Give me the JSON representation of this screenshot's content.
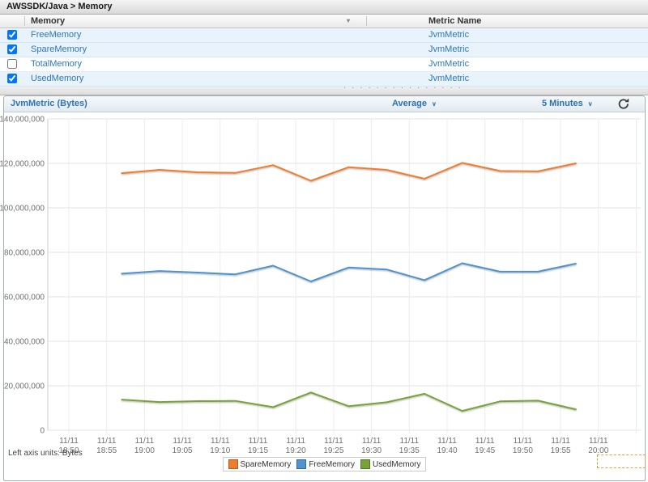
{
  "header": {
    "breadcrumb": "AWSSDK/Java > Memory"
  },
  "icons": {
    "sort_caret": "▾",
    "dropdown_caret": "∨",
    "drag_dots": "· · · · · · · · · · · · · · ·"
  },
  "table": {
    "columns": [
      "Memory",
      "Metric Name"
    ],
    "rows": [
      {
        "memory": "FreeMemory",
        "metric_name": "JvmMetric",
        "checked": true
      },
      {
        "memory": "SpareMemory",
        "metric_name": "JvmMetric",
        "checked": true
      },
      {
        "memory": "TotalMemory",
        "metric_name": "JvmMetric",
        "checked": false
      },
      {
        "memory": "UsedMemory",
        "metric_name": "JvmMetric",
        "checked": true
      }
    ]
  },
  "chart_panel": {
    "title": "JvmMetric (Bytes)",
    "statistic": "Average",
    "period": "5 Minutes"
  },
  "footer": {
    "left_axis_units": "Left axis units: Bytes"
  },
  "chart_data": {
    "type": "line",
    "title": "JvmMetric (Bytes)",
    "ylabel": "Bytes",
    "ylim": [
      0,
      140000000
    ],
    "grid": true,
    "legend_position": "bottom",
    "y_ticks": [
      {
        "value": 140000000,
        "label": "140,000,000"
      },
      {
        "value": 120000000,
        "label": "120,000,000"
      },
      {
        "value": 100000000,
        "label": "100,000,000"
      },
      {
        "value": 80000000,
        "label": "80,000,000"
      },
      {
        "value": 60000000,
        "label": "60,000,000"
      },
      {
        "value": 40000000,
        "label": "40,000,000"
      },
      {
        "value": 20000000,
        "label": "20,000,000"
      },
      {
        "value": 0,
        "label": "0"
      }
    ],
    "x_ticks": [
      {
        "date": "11/11",
        "time": "18:50"
      },
      {
        "date": "11/11",
        "time": "18:55"
      },
      {
        "date": "11/11",
        "time": "19:00"
      },
      {
        "date": "11/11",
        "time": "19:05"
      },
      {
        "date": "11/11",
        "time": "19:10"
      },
      {
        "date": "11/11",
        "time": "19:15"
      },
      {
        "date": "11/11",
        "time": "19:20"
      },
      {
        "date": "11/11",
        "time": "19:25"
      },
      {
        "date": "11/11",
        "time": "19:30"
      },
      {
        "date": "11/11",
        "time": "19:35"
      },
      {
        "date": "11/11",
        "time": "19:40"
      },
      {
        "date": "11/11",
        "time": "19:45"
      },
      {
        "date": "11/11",
        "time": "19:50"
      },
      {
        "date": "11/11",
        "time": "19:55"
      },
      {
        "date": "11/11",
        "time": "20:00"
      }
    ],
    "x_tick_interval_minutes": 5,
    "extra_unlabeled_gridlines": 1,
    "series_x_minutes_from_start": [
      7,
      12,
      17,
      22,
      27,
      32,
      37,
      42,
      47,
      52,
      57,
      62,
      67
    ],
    "series": [
      {
        "name": "SpareMemory",
        "color": "#ee7c2f",
        "edge": "#b35c1e",
        "values": [
          115600000,
          117100000,
          116000000,
          115700000,
          119200000,
          112200000,
          118300000,
          117100000,
          113100000,
          120200000,
          116600000,
          116400000,
          120000000
        ]
      },
      {
        "name": "FreeMemory",
        "color": "#4e92cf",
        "edge": "#336d99",
        "values": [
          70400000,
          71600000,
          70900000,
          70100000,
          74000000,
          66900000,
          73200000,
          72300000,
          67500000,
          75100000,
          71300000,
          71300000,
          74900000
        ]
      },
      {
        "name": "UsedMemory",
        "color": "#75a338",
        "edge": "#55772a",
        "values": [
          13800000,
          12700000,
          13100000,
          13200000,
          10400000,
          17000000,
          10800000,
          12600000,
          16400000,
          8700000,
          13000000,
          13300000,
          9400000
        ]
      }
    ]
  }
}
